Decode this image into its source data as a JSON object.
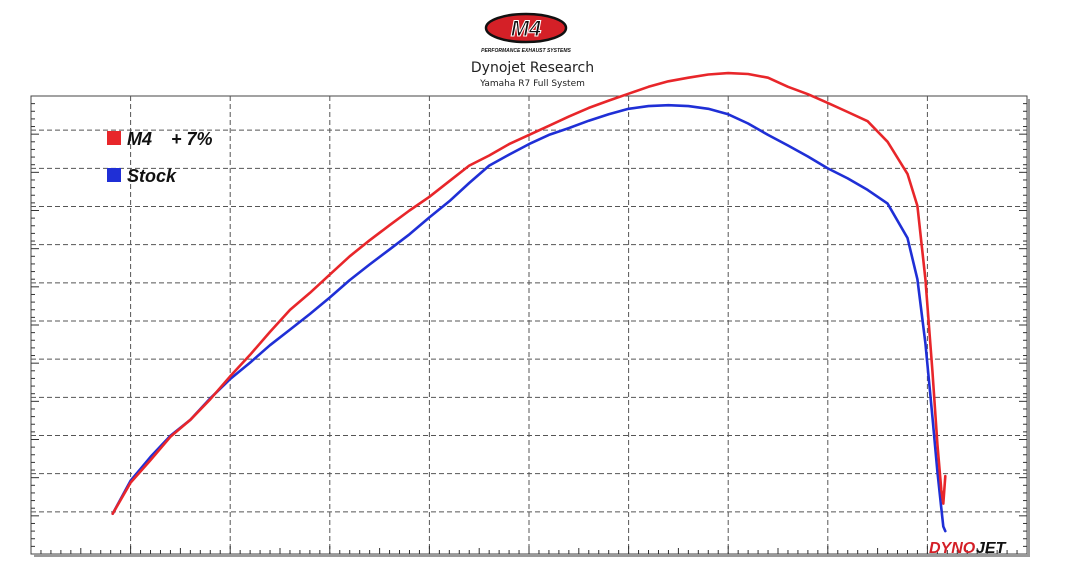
{
  "brand": {
    "logo_text": "M4",
    "logo_tagline": "PERFORMANCE EXHAUST SYSTEMS"
  },
  "watermark": {
    "part1": "DYNO",
    "part2": "JET"
  },
  "colors": {
    "m4": "#e8262a",
    "stock": "#1f2fd6",
    "grid": "#555555",
    "logo_red": "#d42027"
  },
  "chart_data": {
    "type": "line",
    "title": "Dynojet Research",
    "subtitle": "Yamaha R7 Full System",
    "xlabel": "",
    "ylabel": "",
    "xlim": [
      0,
      100
    ],
    "ylim": [
      0,
      100
    ],
    "grid": true,
    "legend_position": "top-left",
    "series": [
      {
        "name": "M4",
        "annotation": "+ 7%",
        "color": "#e8262a",
        "x": [
          8.2,
          10,
          12,
          14,
          16,
          18,
          20,
          22,
          24,
          26,
          28,
          30,
          32,
          34,
          36,
          38,
          40,
          42,
          44,
          46,
          48,
          50,
          52,
          54,
          56,
          58,
          60,
          62,
          64,
          66,
          68,
          70,
          72,
          74,
          76,
          78,
          80,
          82,
          84,
          86,
          88,
          89,
          89.8,
          90.5,
          91,
          91.4,
          91.6,
          91.8
        ],
        "y": [
          8.8,
          15.6,
          20.5,
          25.6,
          29.3,
          33.8,
          38.8,
          43.5,
          48.5,
          53.3,
          57.0,
          61.0,
          65.0,
          68.5,
          71.8,
          75.0,
          78.0,
          81.4,
          84.8,
          87.0,
          89.5,
          91.5,
          93.5,
          95.5,
          97.4,
          99.0,
          100.5,
          102.0,
          103.2,
          104.0,
          104.7,
          105.0,
          104.8,
          104.0,
          102.0,
          100.4,
          98.5,
          96.5,
          94.5,
          90.0,
          83.0,
          76.0,
          60.0,
          40.0,
          24.0,
          14.0,
          11.0,
          17.0
        ]
      },
      {
        "name": "Stock",
        "color": "#1f2fd6",
        "x": [
          8.2,
          10,
          12,
          14,
          16,
          18,
          20,
          22,
          24,
          26,
          28,
          30,
          32,
          34,
          36,
          38,
          40,
          42,
          44,
          46,
          48,
          50,
          52,
          54,
          56,
          58,
          60,
          62,
          64,
          66,
          68,
          70,
          72,
          74,
          76,
          78,
          80,
          82,
          84,
          86,
          88,
          89,
          89.8,
          90.5,
          91,
          91.4,
          91.6,
          91.8
        ],
        "y": [
          8.8,
          16.0,
          21.2,
          25.8,
          29.3,
          34.0,
          38.2,
          41.8,
          45.6,
          49.0,
          52.4,
          56.0,
          59.8,
          63.2,
          66.5,
          69.8,
          73.5,
          77.0,
          81.0,
          84.8,
          87.2,
          89.5,
          91.5,
          93.0,
          94.6,
          96.0,
          97.2,
          97.8,
          98.0,
          97.8,
          97.2,
          96.0,
          94.0,
          91.5,
          89.2,
          86.8,
          84.2,
          82.0,
          79.5,
          76.5,
          69.0,
          60.0,
          46.0,
          30.0,
          18.0,
          10.0,
          6.0,
          5.0
        ]
      }
    ]
  }
}
